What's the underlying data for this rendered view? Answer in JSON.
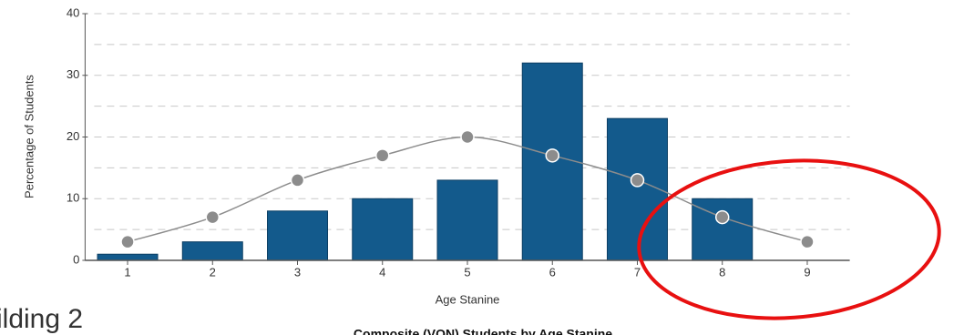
{
  "chart_data": {
    "type": "bar",
    "title": "Composite (VON) Students by Age Stanine",
    "side_text": "ilding 2",
    "x_label": "Age Stanine",
    "y_label": "Percentage of Students",
    "categories": [
      "1",
      "2",
      "3",
      "4",
      "5",
      "6",
      "7",
      "8",
      "9"
    ],
    "values": [
      1,
      3,
      8,
      10,
      13,
      32,
      23,
      10,
      0
    ],
    "color": "#135a8c",
    "curve_values": [
      3,
      7,
      13,
      17,
      20,
      17,
      13,
      7,
      3
    ],
    "curve_color": "#8c8c8c",
    "ylim": [
      0,
      40
    ],
    "yticks": [
      0,
      10,
      20,
      30,
      40
    ],
    "minor_grid": [
      5,
      15,
      25,
      35
    ],
    "grid": true
  }
}
